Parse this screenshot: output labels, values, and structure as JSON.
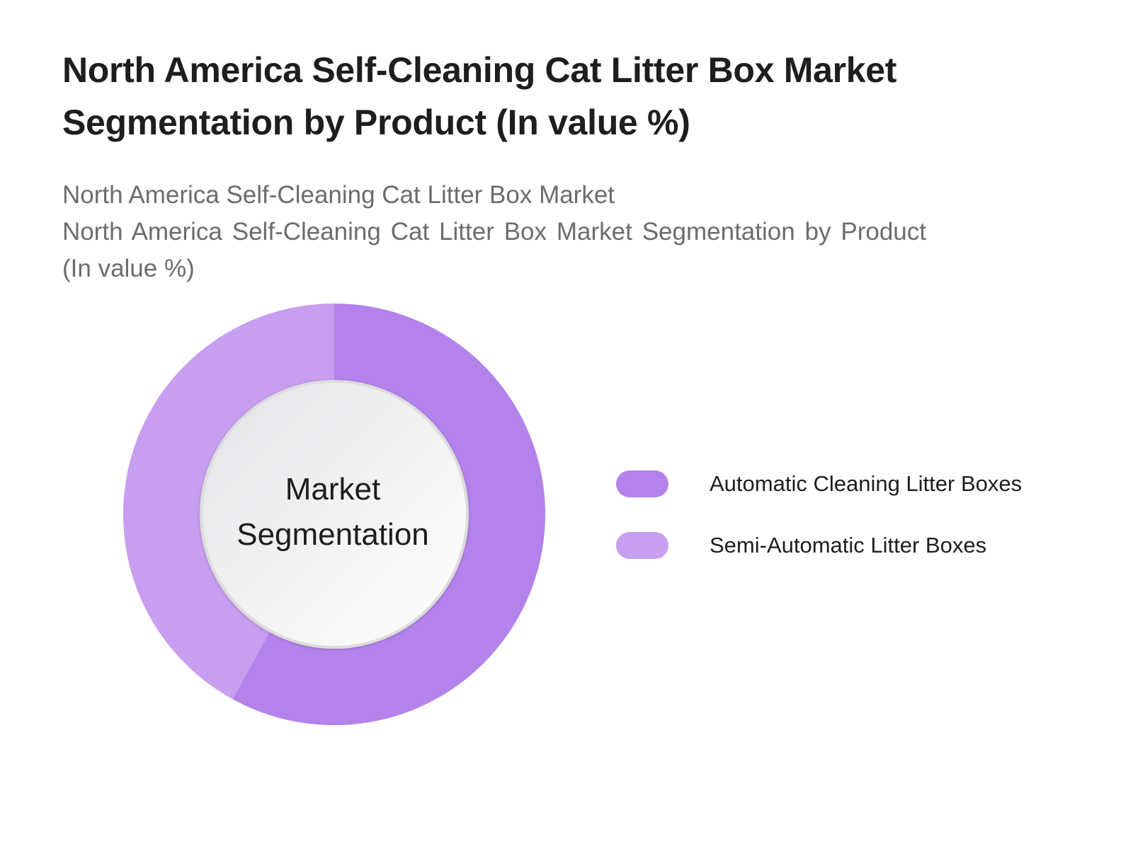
{
  "title": {
    "line1": "North America Self-Cleaning Cat Litter Box Market",
    "line2": "Segmentation by Product (In value %)"
  },
  "subtitle": {
    "line1": "North America Self-Cleaning Cat Litter Box Market",
    "line2": "North America Self-Cleaning Cat Litter Box Market Segmentation by Product (In value %)"
  },
  "center_label": {
    "line1": "Market",
    "line2": "Segmentation"
  },
  "colors": {
    "automatic": "#b383eb",
    "semi_automatic": "#c79ef0"
  },
  "chart_data": {
    "type": "pie",
    "variant": "donut",
    "title": "North America Self-Cleaning Cat Litter Box Market Segmentation by Product (In value %)",
    "categories": [
      "Automatic Cleaning Litter Boxes",
      "Semi-Automatic Litter Boxes"
    ],
    "values": [
      58,
      42
    ],
    "unit": "%",
    "legend_placement": "right"
  },
  "legend": [
    {
      "label": "Automatic Cleaning Litter Boxes",
      "color": "#b383eb"
    },
    {
      "label": "Semi-Automatic Litter Boxes",
      "color": "#c79ef0"
    }
  ]
}
